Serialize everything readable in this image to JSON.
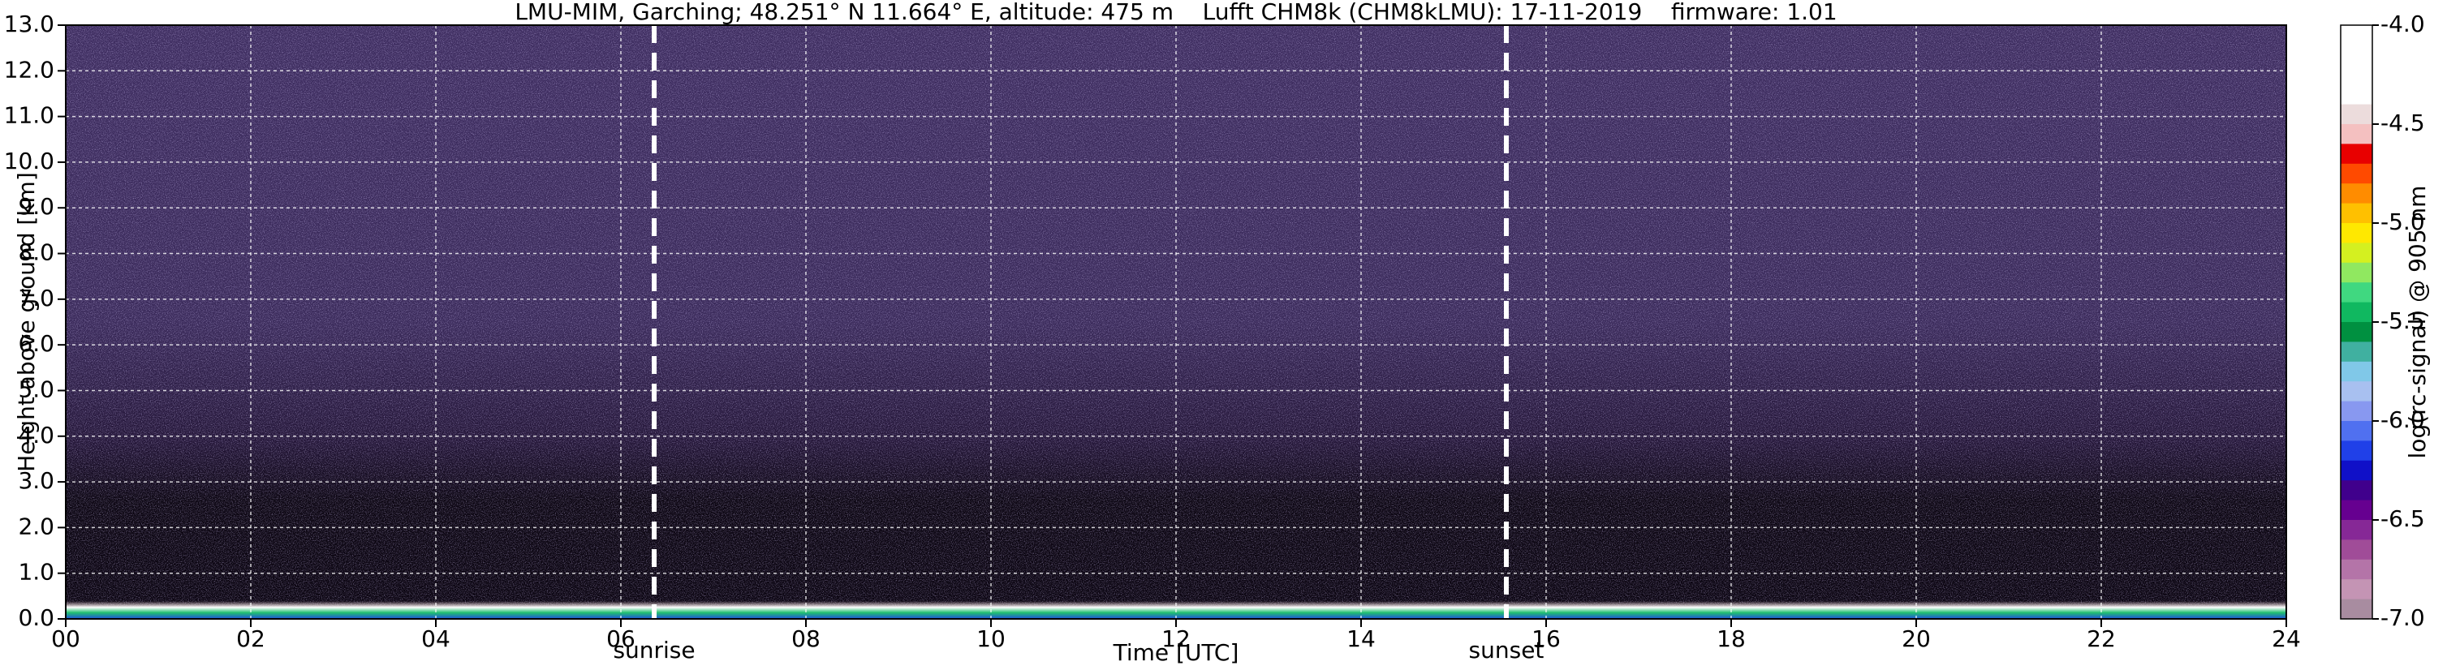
{
  "chart_data": {
    "type": "heatmap",
    "title": "LMU-MIM, Garching; 48.251° N 11.664° E, altitude: 475 m    Lufft CHM8k (CHM8kLMU): 17-11-2019    firmware: 1.01",
    "x_label": "Time [UTC]",
    "y_label": "Height above ground [km]",
    "xlim": [
      0,
      24
    ],
    "xticks": [
      {
        "value": 0,
        "label": "00"
      },
      {
        "value": 2,
        "label": "02"
      },
      {
        "value": 4,
        "label": "04"
      },
      {
        "value": 6,
        "label": "06"
      },
      {
        "value": 8,
        "label": "08"
      },
      10,
      12,
      14,
      16,
      18,
      20,
      22,
      24
    ],
    "ylim": [
      0,
      13
    ],
    "yticks": [
      {
        "value": 0,
        "label": "0.0"
      },
      {
        "value": 1,
        "label": "1.0"
      },
      {
        "value": 2,
        "label": "2.0"
      },
      {
        "value": 3,
        "label": "3.0"
      },
      {
        "value": 4,
        "label": "4.0"
      },
      {
        "value": 5,
        "label": "5.0"
      },
      {
        "value": 6,
        "label": "6.0"
      },
      {
        "value": 7,
        "label": "7.0"
      },
      {
        "value": 8,
        "label": "8.0"
      },
      {
        "value": 9,
        "label": "9.0"
      },
      {
        "value": 10,
        "label": "10.0"
      },
      {
        "value": 11,
        "label": "11.0"
      },
      {
        "value": 12,
        "label": "12.0"
      },
      {
        "value": 13,
        "label": "13.0"
      }
    ],
    "grid": true,
    "annotations": [
      {
        "x": 6.36,
        "label": "sunrise"
      },
      {
        "x": 15.57,
        "label": "sunset"
      }
    ],
    "colorbar": {
      "label": "log(rc-signal) @ 905 nm",
      "lim": [
        -7,
        -4
      ],
      "ticks": [
        {
          "value": -4,
          "label": "-4.0"
        },
        -4.5,
        {
          "value": -5,
          "label": "-5.0"
        },
        -5.5,
        {
          "value": -6,
          "label": "-6.0"
        },
        -6.5,
        {
          "value": -7,
          "label": "-7.0"
        }
      ],
      "colors": [
        "#ffffff",
        "#ffffff",
        "#ffffff",
        "#ffffff",
        "#ecdcdc",
        "#f4c0c0",
        "#e80000",
        "#ff4a00",
        "#ff8c00",
        "#ffc000",
        "#ffe800",
        "#d4f020",
        "#90e860",
        "#40d880",
        "#10b860",
        "#009040",
        "#40b0a0",
        "#80c8e8",
        "#a8c0f0",
        "#8898f0",
        "#5070f0",
        "#2040e8",
        "#1010c8",
        "#40008c",
        "#660090",
        "#862896",
        "#a04c98",
        "#b474a8",
        "#c494b4",
        "#a88ca0"
      ]
    }
  }
}
